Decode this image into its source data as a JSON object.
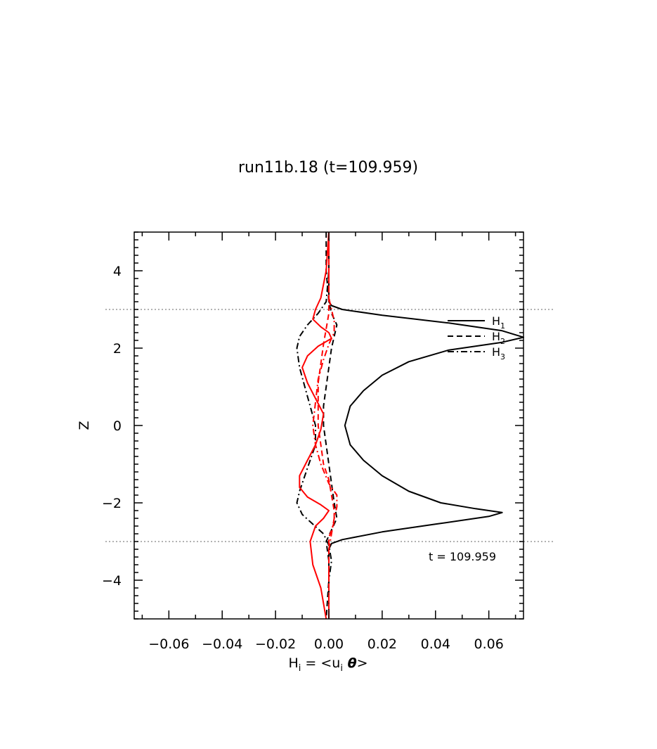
{
  "chart_data": {
    "type": "line",
    "title": "run11b.18 (t=109.959)",
    "xlabel": "H",
    "xlabel_sub": "i",
    "xlabel_eq": " = <u",
    "xlabel_sub2": "i",
    "xlabel_theta": " θ",
    "xlabel_close": ">",
    "ylabel": "Z",
    "xlim": [
      -0.073,
      0.073
    ],
    "ylim": [
      -5,
      5
    ],
    "xticks": [
      -0.06,
      -0.04,
      -0.02,
      0.0,
      0.02,
      0.04,
      0.06
    ],
    "xtick_labels": [
      "−0.06",
      "−0.04",
      "−0.02",
      "0.00",
      "0.02",
      "0.04",
      "0.06"
    ],
    "yticks": [
      -4,
      -2,
      0,
      2,
      4
    ],
    "ytick_labels": [
      "−4",
      "−2",
      "0",
      "2",
      "4"
    ],
    "hlines": [
      3,
      -3
    ],
    "annotation": "t  =  109.959",
    "legend": {
      "position": "top-right",
      "entries": [
        {
          "name": "H",
          "sub": "1",
          "style": "solid"
        },
        {
          "name": "H",
          "sub": "2",
          "style": "dashed"
        },
        {
          "name": "H",
          "sub": "3",
          "style": "dashdot"
        }
      ]
    },
    "colors": {
      "black": "#000000",
      "red": "#ff0000",
      "ref": "#999999"
    },
    "series": [
      {
        "color": "#000000",
        "style": "solid",
        "points": [
          [
            0,
            5
          ],
          [
            0,
            4
          ],
          [
            0,
            3.2
          ],
          [
            0.001,
            3.1
          ],
          [
            0.005,
            3
          ],
          [
            0.02,
            2.85
          ],
          [
            0.045,
            2.65
          ],
          [
            0.065,
            2.45
          ],
          [
            0.073,
            2.28
          ],
          [
            0.065,
            2.15
          ],
          [
            0.045,
            1.95
          ],
          [
            0.03,
            1.65
          ],
          [
            0.02,
            1.3
          ],
          [
            0.013,
            0.9
          ],
          [
            0.008,
            0.5
          ],
          [
            0.006,
            0
          ],
          [
            0.008,
            -0.5
          ],
          [
            0.013,
            -0.9
          ],
          [
            0.02,
            -1.3
          ],
          [
            0.03,
            -1.7
          ],
          [
            0.042,
            -2
          ],
          [
            0.055,
            -2.15
          ],
          [
            0.065,
            -2.25
          ],
          [
            0.06,
            -2.35
          ],
          [
            0.04,
            -2.55
          ],
          [
            0.02,
            -2.75
          ],
          [
            0.005,
            -2.95
          ],
          [
            0.001,
            -3.05
          ],
          [
            0,
            -3.2
          ],
          [
            0,
            -4
          ],
          [
            0,
            -5
          ]
        ]
      },
      {
        "color": "#000000",
        "style": "dashed",
        "points": [
          [
            -0.001,
            5
          ],
          [
            -0.001,
            4
          ],
          [
            0,
            3.2
          ],
          [
            0.001,
            2.9
          ],
          [
            0.003,
            2.6
          ],
          [
            0.002,
            2.3
          ],
          [
            0.001,
            2
          ],
          [
            0,
            1.5
          ],
          [
            -0.001,
            1
          ],
          [
            -0.002,
            0.5
          ],
          [
            -0.002,
            0
          ],
          [
            -0.001,
            -0.5
          ],
          [
            0,
            -1
          ],
          [
            0.001,
            -1.5
          ],
          [
            0.002,
            -2
          ],
          [
            0.003,
            -2.4
          ],
          [
            0.001,
            -2.7
          ],
          [
            -0.001,
            -3
          ],
          [
            0,
            -3.5
          ],
          [
            0,
            -4
          ],
          [
            -0.001,
            -5
          ]
        ]
      },
      {
        "color": "#000000",
        "style": "dashdot",
        "points": [
          [
            0,
            5
          ],
          [
            0,
            4
          ],
          [
            -0.001,
            3.2
          ],
          [
            -0.004,
            2.9
          ],
          [
            -0.008,
            2.6
          ],
          [
            -0.011,
            2.3
          ],
          [
            -0.012,
            2
          ],
          [
            -0.011,
            1.5
          ],
          [
            -0.009,
            1
          ],
          [
            -0.007,
            0.5
          ],
          [
            -0.005,
            0
          ],
          [
            -0.005,
            -0.5
          ],
          [
            -0.007,
            -0.9
          ],
          [
            -0.009,
            -1.3
          ],
          [
            -0.011,
            -1.7
          ],
          [
            -0.012,
            -2
          ],
          [
            -0.01,
            -2.3
          ],
          [
            -0.006,
            -2.55
          ],
          [
            -0.002,
            -2.8
          ],
          [
            0,
            -3.1
          ],
          [
            0.001,
            -3.5
          ],
          [
            0,
            -4
          ],
          [
            0,
            -5
          ]
        ]
      },
      {
        "color": "#ff0000",
        "style": "solid",
        "points": [
          [
            0,
            5
          ],
          [
            -0.001,
            4
          ],
          [
            -0.003,
            3.3
          ],
          [
            -0.005,
            3
          ],
          [
            -0.006,
            2.75
          ],
          [
            -0.003,
            2.55
          ],
          [
            0,
            2.4
          ],
          [
            0.001,
            2.25
          ],
          [
            -0.004,
            2.05
          ],
          [
            -0.008,
            1.8
          ],
          [
            -0.01,
            1.5
          ],
          [
            -0.008,
            1.1
          ],
          [
            -0.005,
            0.7
          ],
          [
            -0.002,
            0.3
          ],
          [
            -0.003,
            -0.1
          ],
          [
            -0.005,
            -0.5
          ],
          [
            -0.008,
            -0.9
          ],
          [
            -0.011,
            -1.3
          ],
          [
            -0.011,
            -1.6
          ],
          [
            -0.008,
            -1.85
          ],
          [
            -0.003,
            -2.05
          ],
          [
            0,
            -2.2
          ],
          [
            -0.002,
            -2.4
          ],
          [
            -0.005,
            -2.6
          ],
          [
            -0.007,
            -3
          ],
          [
            -0.006,
            -3.6
          ],
          [
            -0.003,
            -4.2
          ],
          [
            -0.001,
            -5
          ]
        ]
      },
      {
        "color": "#ff0000",
        "style": "dashdot",
        "points": [
          [
            0,
            5
          ],
          [
            0,
            4
          ],
          [
            0,
            3.3
          ],
          [
            0.001,
            3
          ],
          [
            0.002,
            2.7
          ],
          [
            0.002,
            2.4
          ],
          [
            0,
            2.1
          ],
          [
            -0.002,
            1.7
          ],
          [
            -0.004,
            1.2
          ],
          [
            -0.005,
            0.6
          ],
          [
            -0.006,
            0
          ],
          [
            -0.005,
            -0.5
          ],
          [
            -0.003,
            -1
          ],
          [
            0,
            -1.5
          ],
          [
            0.003,
            -1.8
          ],
          [
            0.003,
            -2.1
          ],
          [
            0.002,
            -2.4
          ],
          [
            0.001,
            -2.8
          ],
          [
            0,
            -3.2
          ],
          [
            0,
            -4
          ],
          [
            0,
            -5
          ]
        ]
      },
      {
        "color": "#ff0000",
        "style": "dashed",
        "points": [
          [
            0,
            5
          ],
          [
            0,
            4
          ],
          [
            0,
            3.2
          ],
          [
            0,
            2.9
          ],
          [
            -0.001,
            2.5
          ],
          [
            -0.002,
            2.1
          ],
          [
            -0.003,
            1.6
          ],
          [
            -0.004,
            1.1
          ],
          [
            -0.004,
            0.5
          ],
          [
            -0.004,
            0
          ],
          [
            -0.003,
            -0.5
          ],
          [
            -0.002,
            -1
          ],
          [
            0,
            -1.4
          ],
          [
            0.001,
            -1.8
          ],
          [
            0.002,
            -2.2
          ],
          [
            0.002,
            -2.5
          ],
          [
            0,
            -2.9
          ],
          [
            0,
            -3.3
          ],
          [
            0,
            -4
          ],
          [
            0,
            -5
          ]
        ]
      }
    ]
  }
}
